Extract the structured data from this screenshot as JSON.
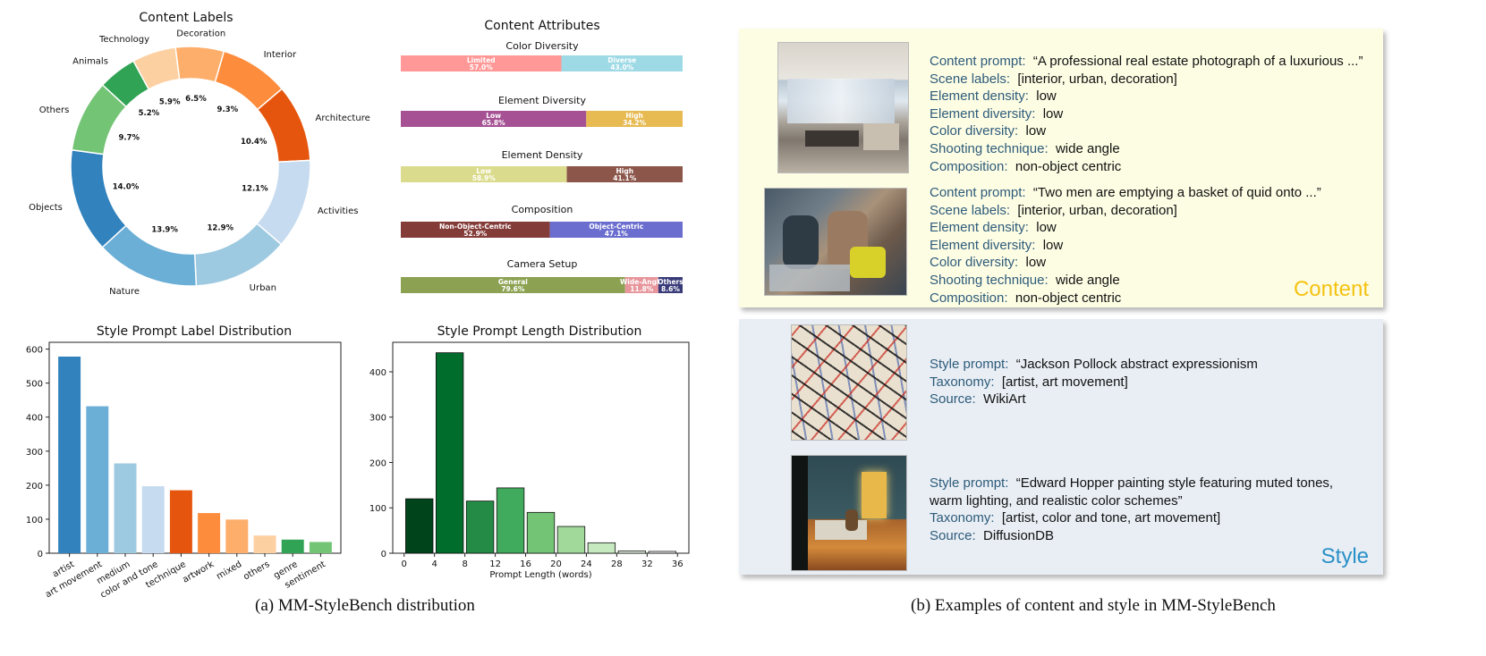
{
  "chart_data": [
    {
      "type": "pie",
      "title": "Content Labels",
      "labels": [
        "Interior",
        "Architecture",
        "Activities",
        "Urban",
        "Nature",
        "Objects",
        "Others",
        "Animals",
        "Technology",
        "Decoration"
      ],
      "values": [
        9.3,
        10.4,
        12.1,
        12.9,
        13.9,
        14.0,
        9.7,
        5.2,
        5.9,
        6.5
      ],
      "value_labels": [
        "9.3%",
        "10.4%",
        "12.1%",
        "12.9%",
        "13.9%",
        "14.0%",
        "9.7%",
        "5.2%",
        "5.9%",
        "6.5%"
      ],
      "colors": [
        "#fd8d3c",
        "#e6550d",
        "#c6dbef",
        "#9ecae1",
        "#6baed6",
        "#3182bd",
        "#74c476",
        "#31a354",
        "#fdd0a2",
        "#fdae6b"
      ]
    },
    {
      "type": "bar",
      "orientation": "stacked-horizontal",
      "title": "Content Attributes",
      "groups": [
        {
          "title": "Color Diversity",
          "segments": [
            {
              "label": "Limited",
              "value": 57.0,
              "text": "57.0%",
              "color": "#ff9896"
            },
            {
              "label": "Diverse",
              "value": 43.0,
              "text": "43.0%",
              "color": "#9edae5"
            }
          ]
        },
        {
          "title": "Element Diversity",
          "segments": [
            {
              "label": "Low",
              "value": 65.8,
              "text": "65.8%",
              "color": "#a55194"
            },
            {
              "label": "High",
              "value": 34.2,
              "text": "34.2%",
              "color": "#e7ba52"
            }
          ]
        },
        {
          "title": "Element Density",
          "segments": [
            {
              "label": "Low",
              "value": 58.9,
              "text": "58.9%",
              "color": "#dbdb8d"
            },
            {
              "label": "High",
              "value": 41.1,
              "text": "41.1%",
              "color": "#8c564b"
            }
          ]
        },
        {
          "title": "Composition",
          "segments": [
            {
              "label": "Non-Object-Centric",
              "value": 52.9,
              "text": "52.9%",
              "color": "#843c39"
            },
            {
              "label": "Object-Centric",
              "value": 47.1,
              "text": "47.1%",
              "color": "#6b6ecf"
            }
          ]
        },
        {
          "title": "Camera Setup",
          "segments": [
            {
              "label": "General",
              "value": 79.6,
              "text": "79.6%",
              "color": "#8ca252"
            },
            {
              "label": "Wide-Angle",
              "value": 11.8,
              "text": "11.8%",
              "color": "#e7969c"
            },
            {
              "label": "Others",
              "value": 8.6,
              "text": "8.6%",
              "color": "#393b79"
            }
          ]
        }
      ]
    },
    {
      "type": "bar",
      "title": "Style Prompt Label Distribution",
      "categories": [
        "artist",
        "art movement",
        "medium",
        "color and tone",
        "technique",
        "artwork",
        "mixed",
        "others",
        "genre",
        "sentiment"
      ],
      "values": [
        578,
        432,
        264,
        197,
        185,
        118,
        99,
        52,
        40,
        33
      ],
      "colors": [
        "#3182bd",
        "#6baed6",
        "#9ecae1",
        "#c6dbef",
        "#e6550d",
        "#fd8d3c",
        "#fdae6b",
        "#fdd0a2",
        "#31a354",
        "#74c476"
      ],
      "ylim": [
        0,
        620
      ],
      "yticks": [
        0,
        100,
        200,
        300,
        400,
        500,
        600
      ]
    },
    {
      "type": "bar",
      "title": "Style Prompt Length Distribution",
      "xlabel": "Prompt Length (words)",
      "bin_edges": [
        0,
        4,
        8,
        12,
        16,
        20,
        24,
        28,
        32,
        36
      ],
      "bin_width": 4,
      "bin_starts": [
        0.2,
        4.2,
        8.2,
        12.2,
        16.2,
        20.2,
        24.2,
        28.2,
        32.2
      ],
      "values": [
        120,
        442,
        115,
        144,
        90,
        59,
        23,
        5,
        4
      ],
      "colors": [
        "#00441b",
        "#006d2c",
        "#238b45",
        "#41ab5d",
        "#74c476",
        "#a1d99b",
        "#c7e9c0",
        "#e5f5e0",
        "#f7fcf5"
      ],
      "xlim": [
        -1.5,
        37.5
      ],
      "ylim": [
        0,
        465
      ],
      "xticks": [
        0,
        4,
        8,
        12,
        16,
        20,
        24,
        28,
        32,
        36
      ],
      "yticks": [
        0,
        100,
        200,
        300,
        400
      ]
    }
  ],
  "captions": {
    "left": "(a) MM-StyleBench distribution",
    "right": "(b) Examples of content and style in MM-StyleBench"
  },
  "content_panel": {
    "tag": "Content",
    "examples": [
      {
        "lines": [
          {
            "key": "Content prompt:",
            "value": "“A professional real estate photograph of a luxurious ...”"
          },
          {
            "key": "Scene labels:",
            "value": "[interior, urban, decoration]"
          },
          {
            "key": "Element density:",
            "value": "low"
          },
          {
            "key": "Element diversity:",
            "value": "low"
          },
          {
            "key": "Color diversity:",
            "value": "low"
          },
          {
            "key": "Shooting technique:",
            "value": "wide angle"
          },
          {
            "key": "Composition:",
            "value": "non-object centric"
          }
        ]
      },
      {
        "lines": [
          {
            "key": "Content prompt:",
            "value": "“Two men are emptying a basket of quid onto ...”"
          },
          {
            "key": "Scene labels:",
            "value": "[interior, urban, decoration]"
          },
          {
            "key": "Element density:",
            "value": "low"
          },
          {
            "key": "Element diversity:",
            "value": "low"
          },
          {
            "key": "Color diversity:",
            "value": "low"
          },
          {
            "key": "Shooting technique:",
            "value": "wide angle"
          },
          {
            "key": "Composition:",
            "value": "non-object centric"
          }
        ]
      }
    ]
  },
  "style_panel": {
    "tag": "Style",
    "examples": [
      {
        "lines": [
          {
            "key": "Style prompt:",
            "value": "“Jackson Pollock abstract expressionism"
          },
          {
            "key": "Taxonomy:",
            "value": "[artist, art movement]"
          },
          {
            "key": "Source:",
            "value": "WikiArt"
          }
        ]
      },
      {
        "lines": [
          {
            "key": "Style prompt:",
            "value": "“Edward Hopper painting style featuring muted tones,"
          },
          {
            "key": "",
            "value": "warm lighting, and realistic color schemes”"
          },
          {
            "key": "Taxonomy:",
            "value": "[artist, color and tone, art movement]"
          },
          {
            "key": "Source:",
            "value": "DiffusionDB"
          }
        ]
      }
    ]
  },
  "colors": {
    "content_bg": "#fdfde4",
    "content_tag": "#f5c211",
    "style_bg": "#e8eef4",
    "style_tag": "#2a90c8",
    "key_text": "#2e5b7a"
  }
}
